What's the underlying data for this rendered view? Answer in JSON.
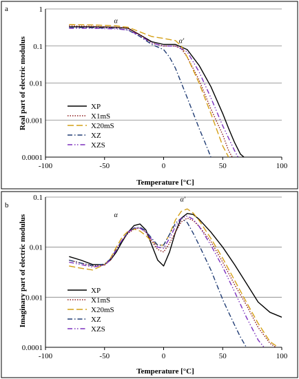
{
  "colors": {
    "XP": "#000000",
    "X1mS": "#8B1A1A",
    "X20mS": "#D4A017",
    "XZ": "#1F3B73",
    "XZS": "#7B2FBE"
  },
  "chart_data": [
    {
      "type": "line",
      "panel_label": "a",
      "xlabel": "Temperature [°C]",
      "ylabel": "Real part of electric modulus",
      "xlim": [
        -100,
        100
      ],
      "ylim": [
        0.0001,
        1
      ],
      "yscale": "log",
      "xticks": [
        "-100",
        "-50",
        "0",
        "50",
        "100"
      ],
      "yticks": [
        "0.0001",
        "0.001",
        "0.01",
        "0.1",
        "1"
      ],
      "grid": "horizontal",
      "legend_position": "lower-left",
      "annotations": [
        {
          "text": "α",
          "x": -42,
          "y": 0.42
        },
        {
          "text": "α'",
          "x": 13,
          "y": 0.12
        }
      ],
      "series": [
        {
          "name": "XP",
          "dash": "solid",
          "x": [
            -80,
            -60,
            -40,
            -30,
            -20,
            -10,
            0,
            10,
            20,
            30,
            40,
            50,
            55,
            60,
            65,
            68
          ],
          "y": [
            0.33,
            0.33,
            0.32,
            0.3,
            0.2,
            0.13,
            0.11,
            0.11,
            0.08,
            0.03,
            0.008,
            0.0015,
            0.0006,
            0.00025,
            0.00012,
            0.0001
          ]
        },
        {
          "name": "X1mS",
          "dash": "dot",
          "x": [
            -80,
            -60,
            -40,
            -30,
            -20,
            -10,
            0,
            10,
            15,
            20,
            30,
            40,
            50,
            55,
            58
          ],
          "y": [
            0.35,
            0.34,
            0.32,
            0.3,
            0.2,
            0.12,
            0.1,
            0.1,
            0.085,
            0.05,
            0.012,
            0.002,
            0.0004,
            0.00015,
            0.0001
          ]
        },
        {
          "name": "X20mS",
          "dash": "longdash",
          "x": [
            -80,
            -60,
            -40,
            -30,
            -20,
            -10,
            0,
            10,
            15,
            20,
            30,
            40,
            50,
            55
          ],
          "y": [
            0.38,
            0.37,
            0.35,
            0.32,
            0.24,
            0.18,
            0.16,
            0.14,
            0.1,
            0.05,
            0.01,
            0.0015,
            0.0002,
            0.0001
          ]
        },
        {
          "name": "XZ",
          "dash": "dashdot",
          "x": [
            -80,
            -60,
            -40,
            -30,
            -20,
            -10,
            0,
            5,
            10,
            20,
            30,
            35,
            40
          ],
          "y": [
            0.32,
            0.31,
            0.3,
            0.27,
            0.18,
            0.11,
            0.08,
            0.05,
            0.025,
            0.004,
            0.0006,
            0.00025,
            0.0001
          ]
        },
        {
          "name": "XZS",
          "dash": "dashdotdot",
          "x": [
            -80,
            -60,
            -40,
            -30,
            -20,
            -10,
            0,
            10,
            20,
            30,
            40,
            50,
            60,
            63
          ],
          "y": [
            0.3,
            0.3,
            0.29,
            0.27,
            0.19,
            0.12,
            0.1,
            0.1,
            0.07,
            0.02,
            0.004,
            0.0007,
            0.00015,
            0.0001
          ]
        }
      ]
    },
    {
      "type": "line",
      "panel_label": "b",
      "xlabel": "Temperature [°C]",
      "ylabel": "Imaginary part of electric modulus",
      "xlim": [
        -100,
        100
      ],
      "ylim": [
        0.0001,
        0.1
      ],
      "yscale": "log",
      "xticks": [
        "-100",
        "-50",
        "0",
        "50",
        "100"
      ],
      "yticks": [
        "0.0001",
        "0.001",
        "0.01",
        "0.1"
      ],
      "grid": "horizontal",
      "legend_position": "lower-left",
      "annotations": [
        {
          "text": "α",
          "x": -42,
          "y": 0.04
        },
        {
          "text": "α'",
          "x": 14,
          "y": 0.082
        }
      ],
      "series": [
        {
          "name": "XP",
          "dash": "solid",
          "x": [
            -80,
            -70,
            -60,
            -50,
            -45,
            -40,
            -35,
            -30,
            -25,
            -20,
            -15,
            -10,
            -5,
            0,
            5,
            10,
            15,
            20,
            25,
            30,
            40,
            50,
            60,
            70,
            80,
            90,
            100
          ],
          "y": [
            0.0065,
            0.0055,
            0.0045,
            0.0045,
            0.0055,
            0.008,
            0.013,
            0.02,
            0.027,
            0.029,
            0.022,
            0.011,
            0.0055,
            0.0042,
            0.008,
            0.02,
            0.038,
            0.047,
            0.045,
            0.036,
            0.02,
            0.01,
            0.0045,
            0.0019,
            0.0008,
            0.0005,
            0.0004
          ]
        },
        {
          "name": "X1mS",
          "dash": "dot",
          "x": [
            -80,
            -70,
            -60,
            -50,
            -45,
            -40,
            -35,
            -30,
            -25,
            -20,
            -15,
            -10,
            -5,
            0,
            5,
            10,
            15,
            20,
            25,
            30,
            40,
            50,
            60,
            70,
            80,
            90,
            95
          ],
          "y": [
            0.0055,
            0.0048,
            0.0042,
            0.0044,
            0.0055,
            0.009,
            0.014,
            0.019,
            0.023,
            0.024,
            0.02,
            0.013,
            0.009,
            0.008,
            0.012,
            0.02,
            0.032,
            0.038,
            0.034,
            0.026,
            0.013,
            0.005,
            0.0018,
            0.0007,
            0.00025,
            0.00012,
            0.0001
          ]
        },
        {
          "name": "X20mS",
          "dash": "longdash",
          "x": [
            -80,
            -70,
            -60,
            -50,
            -45,
            -40,
            -35,
            -30,
            -25,
            -20,
            -15,
            -10,
            -5,
            0,
            5,
            10,
            15,
            20,
            25,
            30,
            40,
            50,
            60,
            70,
            80,
            90,
            97
          ],
          "y": [
            0.0042,
            0.0038,
            0.0035,
            0.0045,
            0.006,
            0.01,
            0.016,
            0.021,
            0.023,
            0.021,
            0.017,
            0.013,
            0.011,
            0.011,
            0.018,
            0.035,
            0.052,
            0.058,
            0.048,
            0.034,
            0.015,
            0.006,
            0.0022,
            0.0008,
            0.0003,
            0.00013,
            0.0001
          ]
        },
        {
          "name": "XZ",
          "dash": "dashdot",
          "x": [
            -80,
            -70,
            -60,
            -50,
            -45,
            -40,
            -35,
            -30,
            -25,
            -20,
            -15,
            -10,
            -5,
            0,
            5,
            10,
            15,
            20,
            25,
            30,
            40,
            50,
            55,
            60,
            65,
            70
          ],
          "y": [
            0.0055,
            0.0048,
            0.0043,
            0.0046,
            0.0058,
            0.009,
            0.014,
            0.02,
            0.024,
            0.025,
            0.021,
            0.015,
            0.011,
            0.011,
            0.018,
            0.03,
            0.038,
            0.031,
            0.019,
            0.011,
            0.0035,
            0.0009,
            0.0005,
            0.00028,
            0.00016,
            0.0001
          ]
        },
        {
          "name": "XZS",
          "dash": "dashdotdot",
          "x": [
            -80,
            -70,
            -60,
            -50,
            -45,
            -40,
            -35,
            -30,
            -25,
            -20,
            -15,
            -10,
            -5,
            0,
            5,
            10,
            15,
            20,
            25,
            30,
            40,
            50,
            60,
            70,
            80,
            85
          ],
          "y": [
            0.005,
            0.0045,
            0.004,
            0.0044,
            0.0056,
            0.0088,
            0.014,
            0.02,
            0.024,
            0.024,
            0.02,
            0.014,
            0.01,
            0.0095,
            0.015,
            0.026,
            0.038,
            0.042,
            0.036,
            0.026,
            0.011,
            0.004,
            0.0013,
            0.0004,
            0.00014,
            0.0001
          ]
        }
      ]
    }
  ]
}
